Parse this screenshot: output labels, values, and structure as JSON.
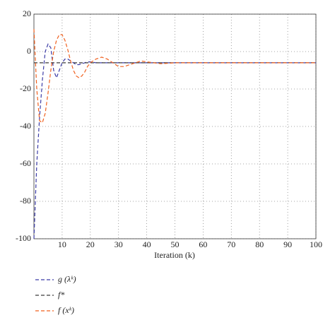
{
  "chart_data": {
    "type": "line",
    "x_label": "Iteration (k)",
    "x": [
      0,
      1,
      2,
      3,
      4,
      5,
      6,
      7,
      8,
      9,
      10,
      11,
      12,
      13,
      14,
      15,
      16,
      17,
      18,
      19,
      20,
      22,
      24,
      26,
      28,
      30,
      32,
      34,
      36,
      38,
      40,
      45,
      50,
      60,
      70,
      80,
      90,
      100
    ],
    "series": [
      {
        "name": "g (λᵏ)",
        "color": "#3b3ba6",
        "values": [
          -100,
          -60,
          -35,
          -15,
          0,
          4,
          2,
          -10,
          -14,
          -10,
          -6,
          -4,
          -4,
          -5,
          -6,
          -7,
          -7,
          -6.5,
          -6,
          -5.5,
          -5.5,
          -6,
          -6,
          -6,
          -6,
          -6,
          -6,
          -6,
          -6,
          -6,
          -6,
          -6,
          -6,
          -6,
          -6,
          -6,
          -6,
          -6
        ]
      },
      {
        "name": "f*",
        "color": "#3a3a3a",
        "values": [
          -6,
          -6,
          -6,
          -6,
          -6,
          -6,
          -6,
          -6,
          -6,
          -6,
          -6,
          -6,
          -6,
          -6,
          -6,
          -6,
          -6,
          -6,
          -6,
          -6,
          -6,
          -6,
          -6,
          -6,
          -6,
          -6,
          -6,
          -6,
          -6,
          -6,
          -6,
          -6,
          -6,
          -6,
          -6,
          -6,
          -6,
          -6
        ]
      },
      {
        "name": "f (xᵏ)",
        "color": "#f0601e",
        "values": [
          12,
          -20,
          -37,
          -38,
          -33,
          -22,
          -10,
          0,
          6,
          9,
          9,
          6,
          1,
          -5,
          -10,
          -13,
          -14,
          -13,
          -11,
          -8,
          -6,
          -4,
          -3,
          -4,
          -6,
          -8,
          -8,
          -7,
          -6,
          -5,
          -5.5,
          -6.5,
          -6,
          -6,
          -6,
          -6,
          -6,
          -6
        ]
      }
    ],
    "xlim": [
      0,
      100
    ],
    "xticks": [
      10,
      20,
      30,
      40,
      50,
      60,
      70,
      80,
      90,
      100
    ],
    "ylim": [
      -100,
      20
    ],
    "yticks": [
      -100,
      -80,
      -60,
      -40,
      -20,
      0,
      20
    ],
    "grid": true
  }
}
